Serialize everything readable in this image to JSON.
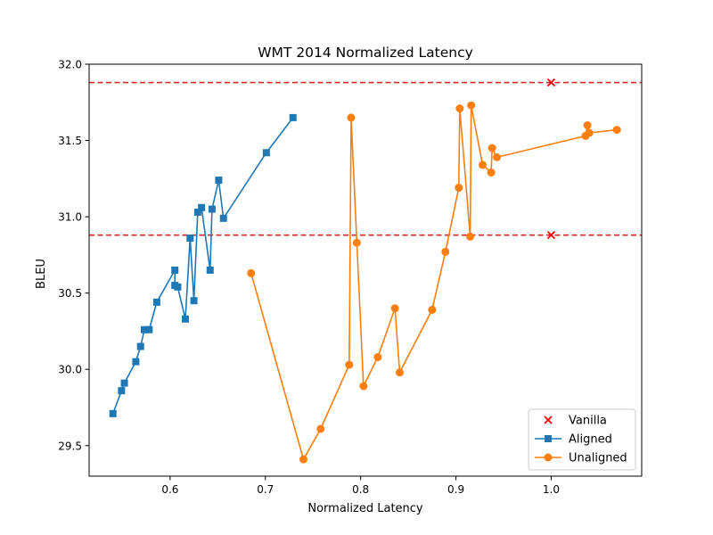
{
  "chart_data": {
    "type": "line",
    "title": "WMT 2014 Normalized Latency",
    "xlabel": "Normalized Latency",
    "ylabel": "BLEU",
    "xlim": [
      0.515,
      1.095
    ],
    "ylim": [
      29.3,
      32.0
    ],
    "x_ticks": [
      0.6,
      0.7,
      0.8,
      0.9,
      1.0
    ],
    "x_tick_labels": [
      "0.6",
      "0.7",
      "0.8",
      "0.9",
      "1.0"
    ],
    "y_ticks": [
      29.5,
      30.0,
      30.5,
      31.0,
      31.5,
      32.0
    ],
    "y_tick_labels": [
      "29.5",
      "30.0",
      "30.5",
      "31.0",
      "31.5",
      "32.0"
    ],
    "grid": false,
    "legend_position": "lower-right",
    "hlines": [
      {
        "y": 31.88,
        "color": "#d62728",
        "style": "dashed"
      },
      {
        "y": 30.88,
        "color": "#d62728",
        "style": "dashed"
      }
    ],
    "series": [
      {
        "name": "Vanilla",
        "kind": "scatter",
        "marker": "x",
        "color": "#ff0000",
        "points": [
          [
            1.0,
            31.88
          ],
          [
            1.0,
            30.88
          ]
        ]
      },
      {
        "name": "Aligned",
        "kind": "line",
        "marker": "square",
        "color": "#1f77b4",
        "points": [
          [
            0.54,
            29.71
          ],
          [
            0.549,
            29.86
          ],
          [
            0.552,
            29.91
          ],
          [
            0.564,
            30.05
          ],
          [
            0.569,
            30.15
          ],
          [
            0.573,
            30.26
          ],
          [
            0.578,
            30.26
          ],
          [
            0.586,
            30.44
          ],
          [
            0.605,
            30.65
          ],
          [
            0.605,
            30.55
          ],
          [
            0.608,
            30.54
          ],
          [
            0.616,
            30.33
          ],
          [
            0.621,
            30.86
          ],
          [
            0.625,
            30.45
          ],
          [
            0.629,
            31.03
          ],
          [
            0.633,
            31.06
          ],
          [
            0.642,
            30.65
          ],
          [
            0.644,
            31.05
          ],
          [
            0.651,
            31.24
          ],
          [
            0.656,
            30.99
          ],
          [
            0.701,
            31.42
          ],
          [
            0.729,
            31.65
          ]
        ]
      },
      {
        "name": "Unaligned",
        "kind": "line",
        "marker": "circle",
        "color": "#ff7f0e",
        "points": [
          [
            0.685,
            30.63
          ],
          [
            0.74,
            29.41
          ],
          [
            0.758,
            29.61
          ],
          [
            0.788,
            30.03
          ],
          [
            0.79,
            31.65
          ],
          [
            0.796,
            30.83
          ],
          [
            0.803,
            29.89
          ],
          [
            0.818,
            30.08
          ],
          [
            0.836,
            30.4
          ],
          [
            0.841,
            29.98
          ],
          [
            0.875,
            30.39
          ],
          [
            0.889,
            30.77
          ],
          [
            0.903,
            31.19
          ],
          [
            0.904,
            31.71
          ],
          [
            0.915,
            30.87
          ],
          [
            0.916,
            31.73
          ],
          [
            0.928,
            31.34
          ],
          [
            0.937,
            31.29
          ],
          [
            0.938,
            31.45
          ],
          [
            0.943,
            31.39
          ],
          [
            1.036,
            31.53
          ],
          [
            1.038,
            31.6
          ],
          [
            1.04,
            31.55
          ],
          [
            1.069,
            31.57
          ]
        ]
      }
    ]
  }
}
